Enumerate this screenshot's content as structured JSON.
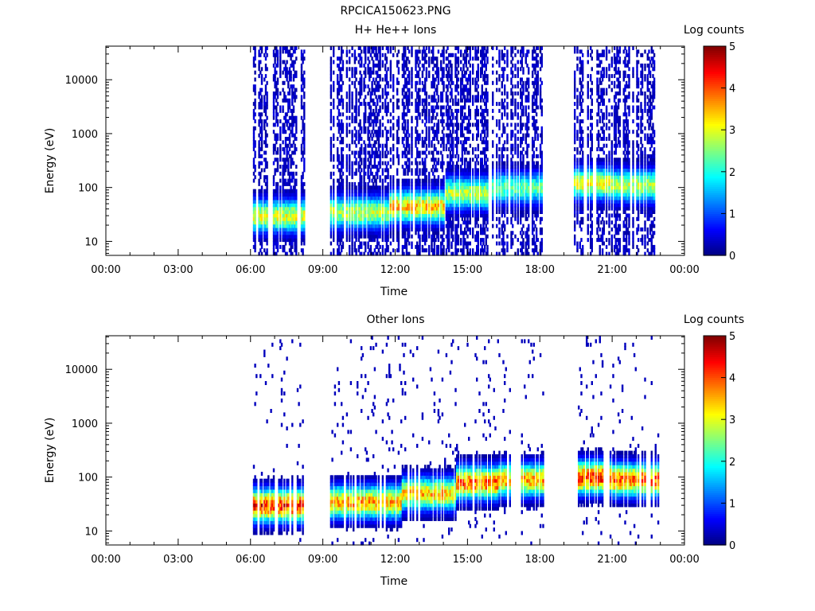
{
  "figure": {
    "title": "RPCICA150623.PNG"
  },
  "chart_data": [
    {
      "type": "heatmap",
      "title": "H+ He++ Ions",
      "xlabel": "Time",
      "ylabel": "Energy (eV)",
      "x_ticks": [
        "00:00",
        "03:00",
        "06:00",
        "09:00",
        "12:00",
        "15:00",
        "18:00",
        "21:00",
        "00:00"
      ],
      "x_range_hours": [
        0,
        24
      ],
      "y_scale": "log",
      "y_range": [
        5.5,
        42000
      ],
      "y_ticks": [
        "10",
        "100",
        "1000",
        "10000"
      ],
      "colorbar": {
        "label": "Log counts",
        "ticks": [
          "0",
          "1",
          "2",
          "3",
          "4",
          "5"
        ],
        "range": [
          0,
          5
        ],
        "colormap": "jet"
      },
      "data_intervals_hours": [
        [
          6.1,
          8.2
        ],
        [
          9.3,
          18.1
        ],
        [
          19.3,
          22.9
        ]
      ],
      "peak_energy_eV": [
        {
          "t_hours": 7.0,
          "energy_eV": 30,
          "log_counts": 3.2
        },
        {
          "t_hours": 10.5,
          "energy_eV": 35,
          "log_counts": 3.0
        },
        {
          "t_hours": 13.0,
          "energy_eV": 45,
          "log_counts": 3.6
        },
        {
          "t_hours": 15.0,
          "energy_eV": 80,
          "log_counts": 3.0
        },
        {
          "t_hours": 17.0,
          "energy_eV": 100,
          "log_counts": 2.5
        },
        {
          "t_hours": 20.0,
          "energy_eV": 120,
          "log_counts": 3.2
        },
        {
          "t_hours": 22.0,
          "energy_eV": 110,
          "log_counts": 3.0
        }
      ]
    },
    {
      "type": "heatmap",
      "title": "Other Ions",
      "xlabel": "Time",
      "ylabel": "Energy (eV)",
      "x_ticks": [
        "00:00",
        "03:00",
        "06:00",
        "09:00",
        "12:00",
        "15:00",
        "18:00",
        "21:00",
        "00:00"
      ],
      "x_range_hours": [
        0,
        24
      ],
      "y_scale": "log",
      "y_range": [
        5.5,
        42000
      ],
      "y_ticks": [
        "10",
        "100",
        "1000",
        "10000"
      ],
      "colorbar": {
        "label": "Log counts",
        "ticks": [
          "0",
          "1",
          "2",
          "3",
          "4",
          "5"
        ],
        "range": [
          0,
          5
        ],
        "colormap": "jet"
      },
      "data_intervals_hours": [
        [
          6.1,
          8.2
        ],
        [
          9.3,
          18.1
        ],
        [
          19.3,
          22.9
        ]
      ],
      "peak_energy_eV": [
        {
          "t_hours": 7.0,
          "energy_eV": 30,
          "log_counts": 4.5
        },
        {
          "t_hours": 11.0,
          "energy_eV": 35,
          "log_counts": 3.8
        },
        {
          "t_hours": 13.5,
          "energy_eV": 50,
          "log_counts": 3.6
        },
        {
          "t_hours": 15.5,
          "energy_eV": 80,
          "log_counts": 4.2
        },
        {
          "t_hours": 17.0,
          "energy_eV": 90,
          "log_counts": 3.8
        },
        {
          "t_hours": 20.0,
          "energy_eV": 100,
          "log_counts": 4.5
        },
        {
          "t_hours": 22.0,
          "energy_eV": 90,
          "log_counts": 4.2
        }
      ]
    }
  ]
}
